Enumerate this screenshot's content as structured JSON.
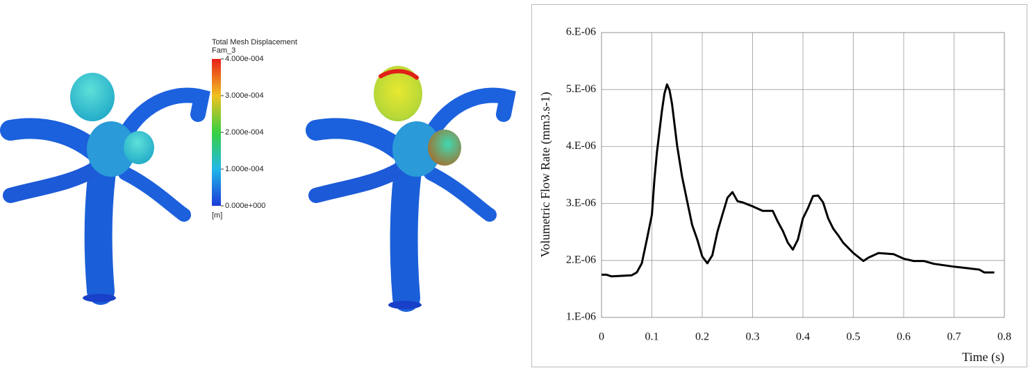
{
  "colorbar": {
    "title": "Total Mesh Displacement",
    "subtitle": "Fam_3",
    "unit": "[m]",
    "lim": [
      0,
      0.0004
    ],
    "ticks": [
      {
        "value": 0.0004,
        "label": "4.000e-004"
      },
      {
        "value": 0.0003,
        "label": "3.000e-004"
      },
      {
        "value": 0.0002,
        "label": "2.000e-004"
      },
      {
        "value": 0.0001,
        "label": "1.000e-004"
      },
      {
        "value": 0,
        "label": "0.000e+000"
      }
    ]
  },
  "chart_data": {
    "type": "line",
    "y_label": "Volumetric Flow Rate (mm3.s-1)",
    "x_label": "Time (s)",
    "x": [
      0,
      0.01,
      0.02,
      0.04,
      0.06,
      0.07,
      0.08,
      0.09,
      0.1,
      0.105,
      0.11,
      0.12,
      0.125,
      0.13,
      0.135,
      0.14,
      0.15,
      0.16,
      0.17,
      0.18,
      0.19,
      0.2,
      0.21,
      0.22,
      0.23,
      0.24,
      0.25,
      0.26,
      0.27,
      0.28,
      0.3,
      0.32,
      0.34,
      0.35,
      0.36,
      0.37,
      0.38,
      0.39,
      0.4,
      0.41,
      0.42,
      0.43,
      0.44,
      0.45,
      0.46,
      0.47,
      0.48,
      0.5,
      0.52,
      0.53,
      0.55,
      0.58,
      0.6,
      0.62,
      0.64,
      0.66,
      0.7,
      0.73,
      0.75,
      0.76,
      0.78
    ],
    "values": [
      1.75e-06,
      1.75e-06,
      1.72e-06,
      1.73e-06,
      1.74e-06,
      1.79e-06,
      1.95e-06,
      2.37e-06,
      2.8e-06,
      3.41e-06,
      3.9e-06,
      4.63e-06,
      4.93e-06,
      5.09e-06,
      4.99e-06,
      4.75e-06,
      4.02e-06,
      3.47e-06,
      3.04e-06,
      2.62e-06,
      2.37e-06,
      2.07e-06,
      1.95e-06,
      2.09e-06,
      2.5e-06,
      2.8e-06,
      3.1e-06,
      3.2e-06,
      3.04e-06,
      3.02e-06,
      2.95e-06,
      2.87e-06,
      2.87e-06,
      2.68e-06,
      2.52e-06,
      2.31e-06,
      2.19e-06,
      2.37e-06,
      2.74e-06,
      2.92e-06,
      3.13e-06,
      3.14e-06,
      3.02e-06,
      2.74e-06,
      2.56e-06,
      2.44e-06,
      2.31e-06,
      2.13e-06,
      1.99e-06,
      2.05e-06,
      2.13e-06,
      2.11e-06,
      2.03e-06,
      1.99e-06,
      1.99e-06,
      1.94e-06,
      1.89e-06,
      1.86e-06,
      1.84e-06,
      1.79e-06,
      1.79e-06
    ],
    "color": "#000000",
    "xlim": [
      0,
      0.8
    ],
    "xticks": [
      0,
      0.1,
      0.2,
      0.3,
      0.4,
      0.5,
      0.6,
      0.7,
      0.8
    ],
    "ylim": [
      1e-06,
      6e-06
    ],
    "yticks": [
      {
        "value": 1e-06,
        "label": "1.E-06"
      },
      {
        "value": 2e-06,
        "label": "2.E-06"
      },
      {
        "value": 3e-06,
        "label": "3.E-06"
      },
      {
        "value": 4e-06,
        "label": "4.E-06"
      },
      {
        "value": 5e-06,
        "label": "5.E-06"
      },
      {
        "value": 6e-06,
        "label": "6.E-06"
      }
    ],
    "grid": true
  }
}
